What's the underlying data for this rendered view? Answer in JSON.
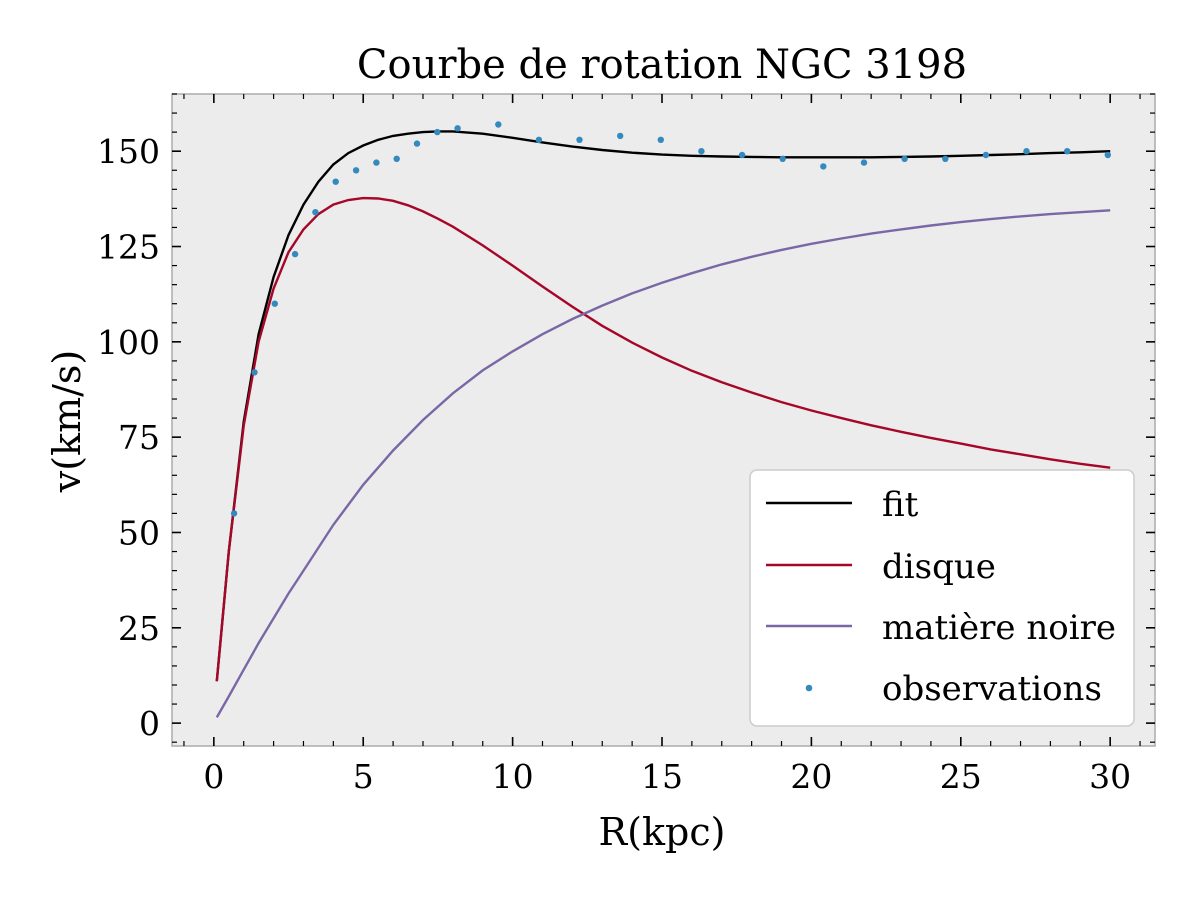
{
  "chart_data": {
    "type": "line",
    "title": "Courbe de rotation NGC 3198",
    "xlabel": "R(kpc)",
    "ylabel": "v(km/s)",
    "xlim": [
      -1.4,
      31.5
    ],
    "ylim": [
      -6,
      165
    ],
    "x_ticks": [
      0,
      5,
      10,
      15,
      20,
      25,
      30
    ],
    "y_ticks": [
      0,
      25,
      50,
      75,
      100,
      125,
      150
    ],
    "grid": false,
    "plot_background": "#ececec",
    "legend_position": "lower-right",
    "series": [
      {
        "name": "fit",
        "kind": "line",
        "color": "#000000",
        "x": [
          0.1,
          0.5,
          1,
          1.5,
          2,
          2.5,
          3,
          3.5,
          4,
          4.5,
          5,
          5.5,
          6,
          6.5,
          7,
          7.5,
          8,
          9,
          10,
          11,
          12,
          13,
          14,
          15,
          16,
          17,
          18,
          19,
          20,
          21,
          22,
          23,
          24,
          25,
          26,
          27,
          28,
          29,
          30
        ],
        "y": [
          11,
          45,
          79,
          102,
          117,
          128,
          136,
          142,
          146.5,
          149.5,
          151.5,
          153,
          154,
          154.6,
          155,
          155.2,
          155.2,
          154.6,
          153.5,
          152.3,
          151.2,
          150.3,
          149.6,
          149.1,
          148.8,
          148.6,
          148.5,
          148.4,
          148.4,
          148.4,
          148.4,
          148.5,
          148.6,
          148.8,
          149,
          149.2,
          149.5,
          149.7,
          150
        ]
      },
      {
        "name": "disque",
        "kind": "line",
        "color": "#a60628",
        "x": [
          0.1,
          0.5,
          1,
          1.5,
          2,
          2.5,
          3,
          3.5,
          4,
          4.5,
          5,
          5.5,
          6,
          6.5,
          7,
          7.5,
          8,
          9,
          10,
          11,
          12,
          13,
          14,
          15,
          16,
          17,
          18,
          19,
          20,
          21,
          22,
          23,
          24,
          25,
          26,
          27,
          28,
          29,
          30
        ],
        "y": [
          11,
          45,
          78,
          100,
          114,
          123.5,
          129.5,
          133.5,
          136,
          137.2,
          137.7,
          137.6,
          137,
          135.8,
          134.2,
          132.3,
          130.2,
          125.3,
          120,
          114.5,
          109.2,
          104.2,
          99.8,
          95.9,
          92.4,
          89.4,
          86.7,
          84.2,
          82,
          80,
          78.1,
          76.4,
          74.8,
          73.3,
          71.8,
          70.5,
          69.2,
          68,
          67
        ]
      },
      {
        "name": "matière noire",
        "kind": "line",
        "color": "#7a68a6",
        "x": [
          0.1,
          0.5,
          1,
          1.5,
          2,
          2.5,
          3,
          4,
          5,
          6,
          7,
          8,
          9,
          10,
          11,
          12,
          13,
          14,
          15,
          16,
          17,
          18,
          19,
          20,
          21,
          22,
          23,
          24,
          25,
          26,
          27,
          28,
          29,
          30
        ],
        "y": [
          1.5,
          7,
          14,
          21,
          27.5,
          34,
          40,
          52,
          62.5,
          71.5,
          79.5,
          86.5,
          92.5,
          97.5,
          102,
          106,
          109.5,
          112.7,
          115.5,
          118,
          120.3,
          122.3,
          124.1,
          125.7,
          127.1,
          128.4,
          129.5,
          130.5,
          131.4,
          132.2,
          132.9,
          133.5,
          134,
          134.5
        ]
      },
      {
        "name": "observations",
        "kind": "scatter",
        "color": "#348abd",
        "x": [
          0.68,
          1.36,
          2.04,
          2.72,
          3.4,
          4.08,
          4.76,
          5.44,
          6.12,
          6.8,
          7.48,
          8.16,
          9.52,
          10.88,
          12.24,
          13.6,
          14.96,
          16.32,
          17.68,
          19.04,
          20.4,
          21.76,
          23.12,
          24.48,
          25.84,
          27.2,
          28.56,
          29.92
        ],
        "y": [
          55,
          92,
          110,
          123,
          134,
          142,
          145,
          147,
          148,
          152,
          155,
          156,
          157,
          153,
          153,
          154,
          153,
          150,
          149,
          148,
          146,
          147,
          148,
          148,
          149,
          150,
          150,
          149
        ]
      }
    ]
  }
}
